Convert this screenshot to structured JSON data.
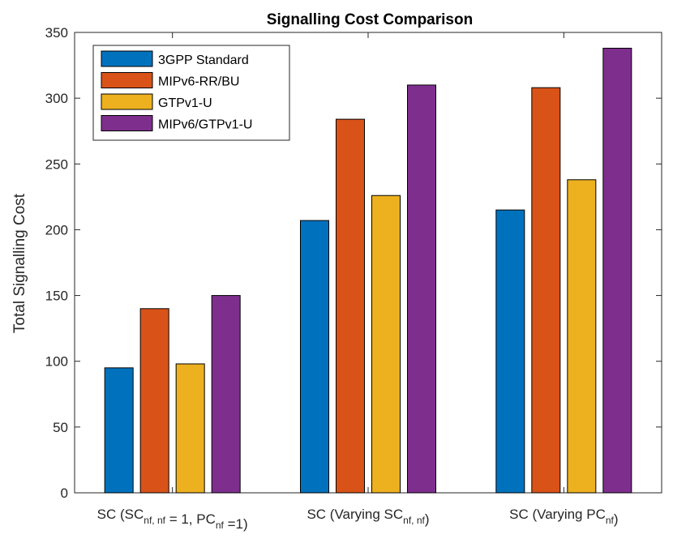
{
  "chart_data": {
    "type": "bar",
    "title": "Signalling Cost Comparison",
    "xlabel": "",
    "ylabel": "Total Signalling Cost",
    "ylim": [
      0,
      350
    ],
    "yticks": [
      0,
      50,
      100,
      150,
      200,
      250,
      300,
      350
    ],
    "legend_position": "top-left",
    "categories": [
      {
        "parts": [
          {
            "text": "SC (SC",
            "sub": false
          },
          {
            "text": "nf, nf",
            "sub": true
          },
          {
            "text": " = 1, PC",
            "sub": false
          },
          {
            "text": "nf",
            "sub": true
          },
          {
            "text": " =1)",
            "sub": false
          }
        ]
      },
      {
        "parts": [
          {
            "text": "SC (Varying SC",
            "sub": false
          },
          {
            "text": "nf, nf",
            "sub": true
          },
          {
            "text": ")",
            "sub": false
          }
        ]
      },
      {
        "parts": [
          {
            "text": "SC (Varying PC",
            "sub": false
          },
          {
            "text": "nf",
            "sub": true
          },
          {
            "text": ")",
            "sub": false
          }
        ]
      }
    ],
    "series": [
      {
        "name": "3GPP Standard",
        "color": "#0072BD",
        "values": [
          95,
          207,
          215
        ]
      },
      {
        "name": "MIPv6-RR/BU",
        "color": "#D95319",
        "values": [
          140,
          284,
          308
        ]
      },
      {
        "name": "GTPv1-U",
        "color": "#EDB120",
        "values": [
          98,
          226,
          238
        ]
      },
      {
        "name": "MIPv6/GTPv1-U",
        "color": "#7E2F8E",
        "values": [
          150,
          310,
          338
        ]
      }
    ]
  }
}
